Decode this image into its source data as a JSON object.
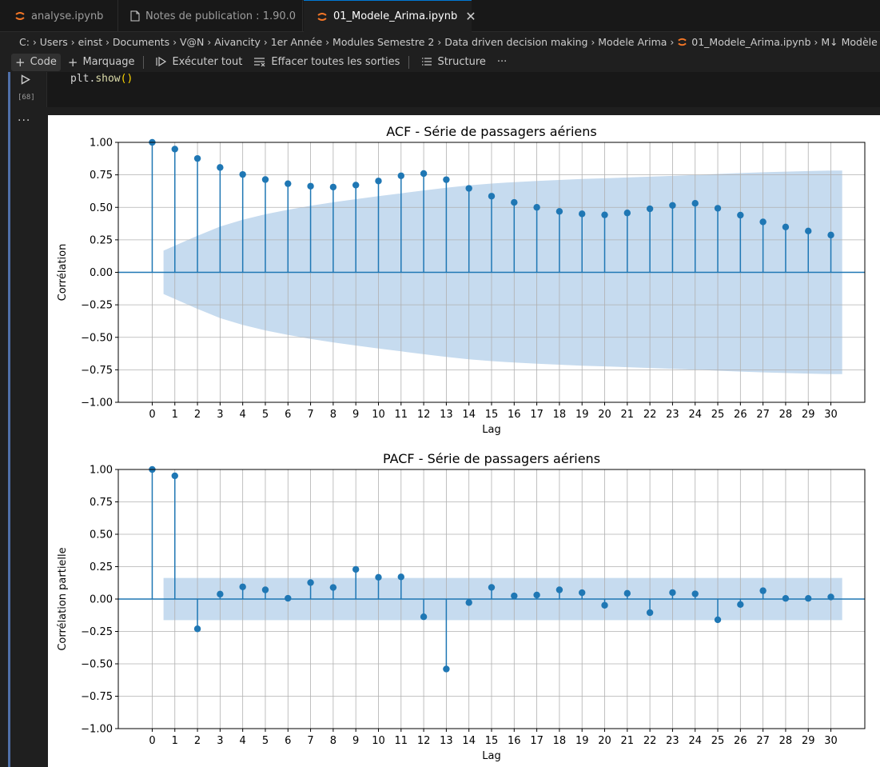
{
  "tabs": [
    {
      "label": "analyse.ipynb",
      "icon": "jupyter-icon",
      "active": false
    },
    {
      "label": "Notes de publication : 1.90.0",
      "icon": "file-icon",
      "active": false
    },
    {
      "label": "01_Modele_Arima.ipynb",
      "icon": "jupyter-icon",
      "active": true
    }
  ],
  "breadcrumb": [
    "C:",
    "Users",
    "einst",
    "Documents",
    "V@N",
    "Aivancity",
    "1er Année",
    "Modules Semestre 2",
    "Data driven decision making",
    "Modele Arima",
    "01_Modele_Arima.ipynb",
    "M↓ Modèle"
  ],
  "toolbar": {
    "code": "Code",
    "markdown": "Marquage",
    "run_all": "Exécuter tout",
    "clear_outputs": "Effacer toutes les sorties",
    "outline": "Structure",
    "more": "···"
  },
  "cell": {
    "exec_count": "[68]",
    "code_obj": "plt.",
    "code_fn": "show",
    "code_paren": "()",
    "output_marker": "···"
  },
  "colors": {
    "accent": "#1f77b4",
    "confidence_band": "#c6dbef",
    "cell_bar": "#4f6fa8"
  },
  "chart_data": [
    {
      "type": "stem",
      "title": "ACF - Série de passagers aériens",
      "xlabel": "Lag",
      "ylabel": "Corrélation",
      "ylim": [
        -1.0,
        1.0
      ],
      "yticks": [
        1.0,
        0.75,
        0.5,
        0.25,
        0.0,
        -0.25,
        -0.5,
        -0.75,
        -1.0
      ],
      "ytick_labels": [
        "1.00",
        "0.75",
        "0.50",
        "0.25",
        "0.00",
        "−0.25",
        "−0.50",
        "−0.75",
        "−1.00"
      ],
      "xlim": [
        -1.5,
        31.5
      ],
      "x": [
        0,
        1,
        2,
        3,
        4,
        5,
        6,
        7,
        8,
        9,
        10,
        11,
        12,
        13,
        14,
        15,
        16,
        17,
        18,
        19,
        20,
        21,
        22,
        23,
        24,
        25,
        26,
        27,
        28,
        29,
        30
      ],
      "values": [
        1.0,
        0.948,
        0.876,
        0.807,
        0.753,
        0.714,
        0.682,
        0.663,
        0.656,
        0.671,
        0.703,
        0.743,
        0.76,
        0.713,
        0.646,
        0.586,
        0.538,
        0.5,
        0.469,
        0.45,
        0.442,
        0.457,
        0.489,
        0.515,
        0.531,
        0.493,
        0.44,
        0.388,
        0.349,
        0.318,
        0.287
      ],
      "confidence": [
        0.167,
        0.281,
        0.352,
        0.405,
        0.447,
        0.482,
        0.512,
        0.539,
        0.563,
        0.586,
        0.608,
        0.63,
        0.651,
        0.669,
        0.683,
        0.694,
        0.703,
        0.711,
        0.718,
        0.724,
        0.73,
        0.736,
        0.742,
        0.749,
        0.757,
        0.764,
        0.77,
        0.775,
        0.779,
        0.783
      ],
      "grid": true
    },
    {
      "type": "stem",
      "title": "PACF - Série de passagers aériens",
      "xlabel": "Lag",
      "ylabel": "Corrélation partielle",
      "ylim": [
        -1.0,
        1.0
      ],
      "yticks": [
        1.0,
        0.75,
        0.5,
        0.25,
        0.0,
        -0.25,
        -0.5,
        -0.75,
        -1.0
      ],
      "ytick_labels": [
        "1.00",
        "0.75",
        "0.50",
        "0.25",
        "0.00",
        "−0.25",
        "−0.50",
        "−0.75",
        "−1.00"
      ],
      "xlim": [
        -1.5,
        31.5
      ],
      "x": [
        0,
        1,
        2,
        3,
        4,
        5,
        6,
        7,
        8,
        9,
        10,
        11,
        12,
        13,
        14,
        15,
        16,
        17,
        18,
        19,
        20,
        21,
        22,
        23,
        24,
        25,
        26,
        27,
        28,
        29,
        30
      ],
      "values": [
        1.0,
        0.951,
        -0.23,
        0.038,
        0.094,
        0.071,
        0.006,
        0.127,
        0.089,
        0.229,
        0.168,
        0.171,
        -0.137,
        -0.54,
        -0.027,
        0.09,
        0.024,
        0.031,
        0.071,
        0.049,
        -0.048,
        0.044,
        -0.105,
        0.05,
        0.04,
        -0.16,
        -0.042,
        0.064,
        0.005,
        0.005,
        0.016
      ],
      "confidence": [
        0.163,
        0.163,
        0.163,
        0.163,
        0.163,
        0.163,
        0.163,
        0.163,
        0.163,
        0.163,
        0.163,
        0.163,
        0.163,
        0.163,
        0.163,
        0.163,
        0.163,
        0.163,
        0.163,
        0.163,
        0.163,
        0.163,
        0.163,
        0.163,
        0.163,
        0.163,
        0.163,
        0.163,
        0.163,
        0.163
      ],
      "grid": true
    }
  ]
}
